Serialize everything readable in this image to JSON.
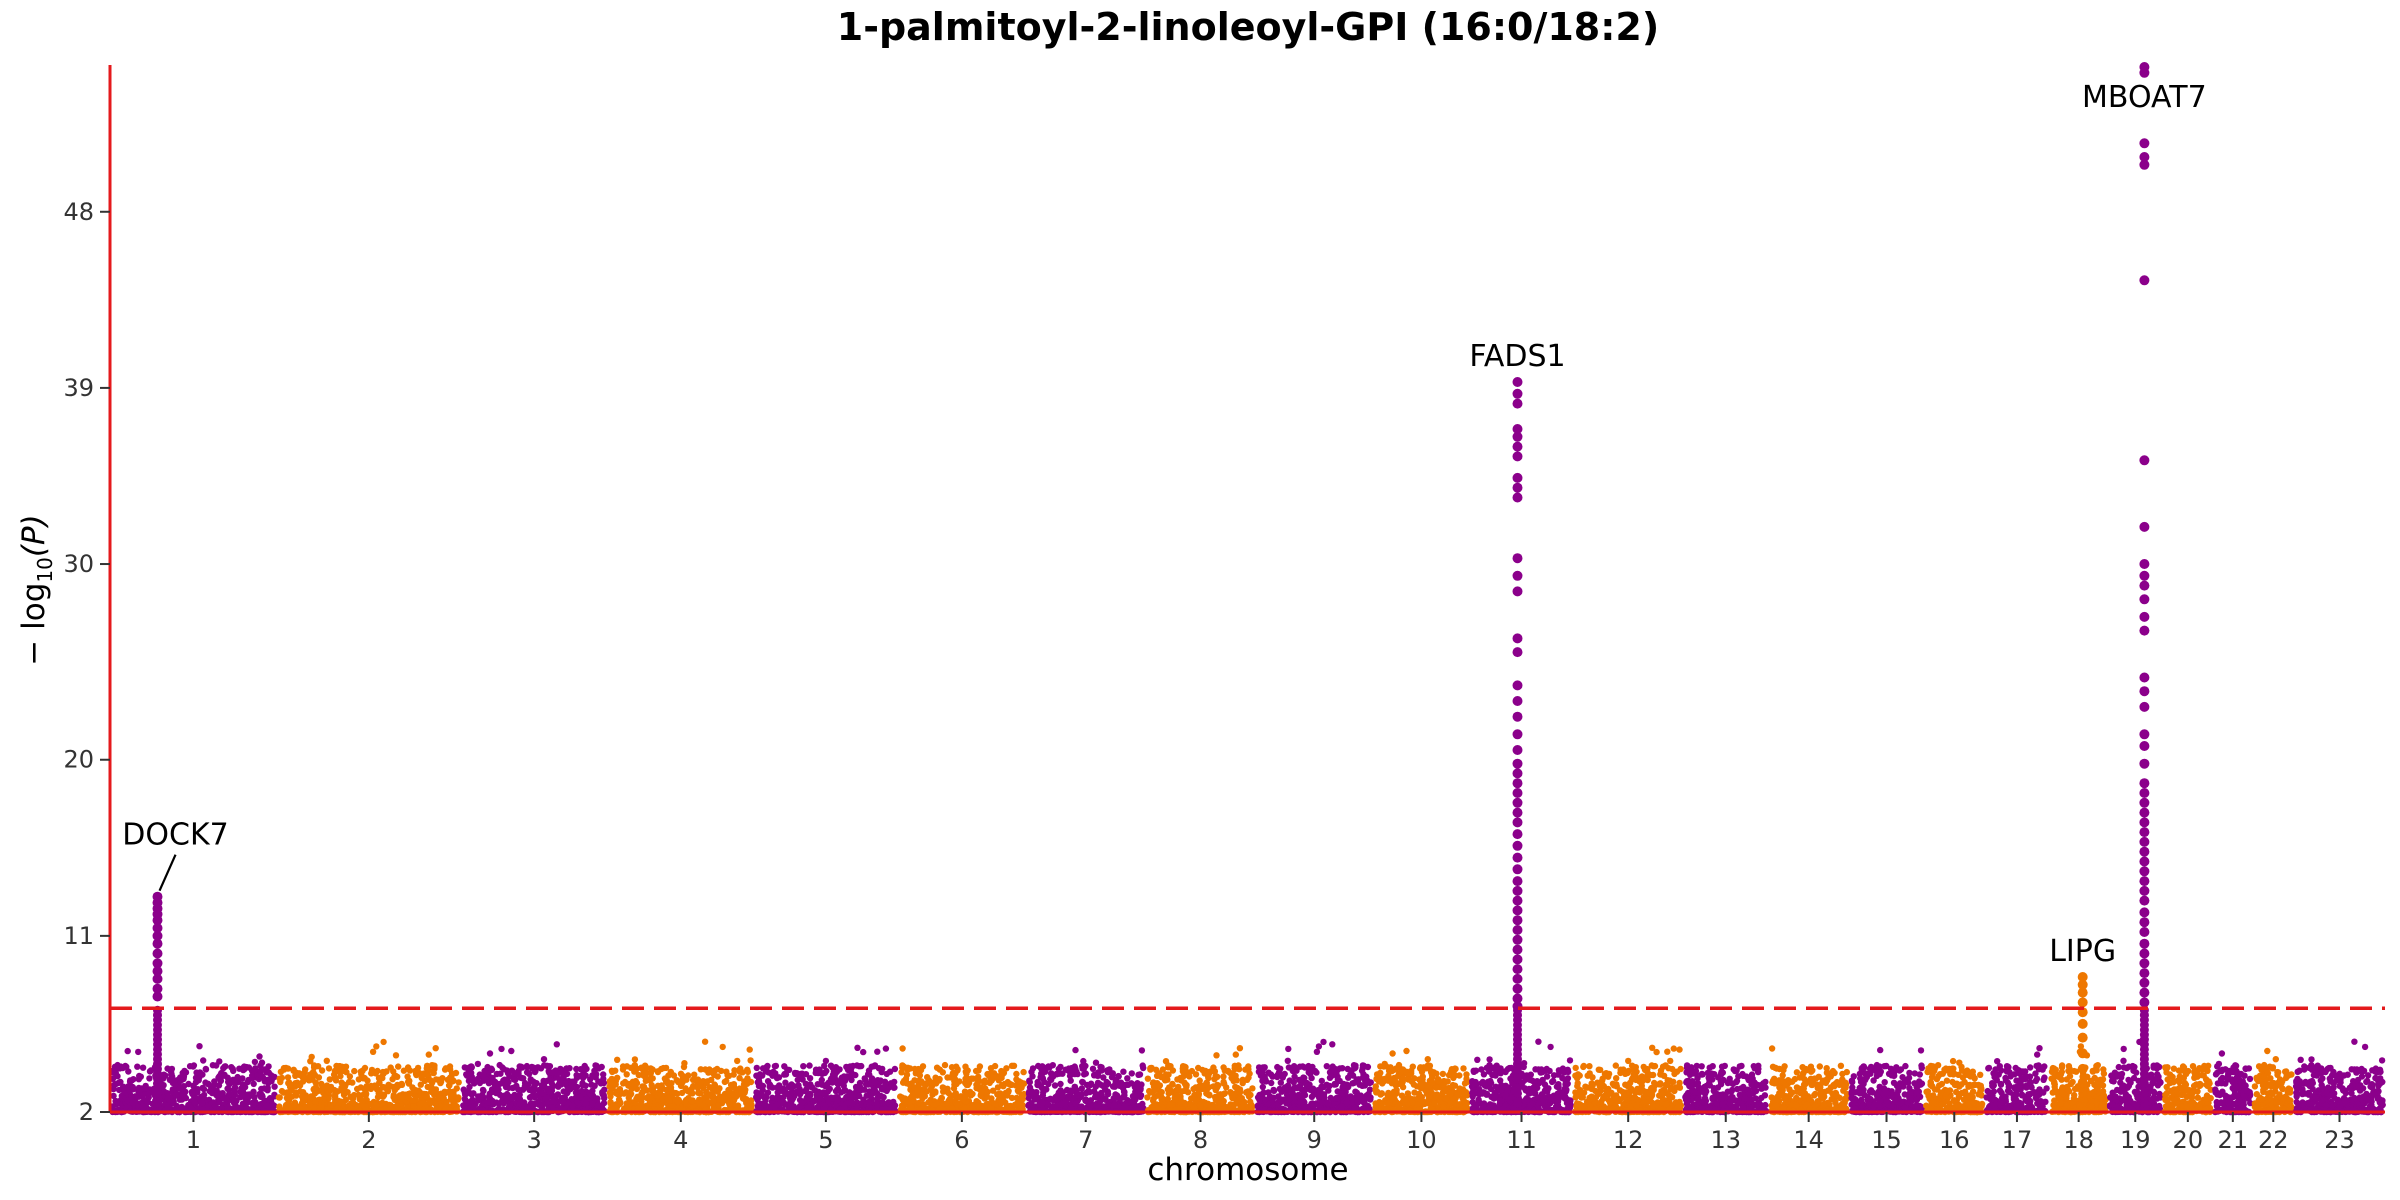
{
  "chart_data": {
    "type": "scatter",
    "subtype": "manhattan",
    "title": "1-palmitoyl-2-linoleoyl-GPI (16:0/18:2)",
    "xlabel": "chromosome",
    "ylabel_main": "− log",
    "ylabel_sub": "10",
    "ylabel_tail": "(P)",
    "ylim": [
      2,
      55.5
    ],
    "yticks": [
      2,
      11,
      20,
      30,
      39,
      48
    ],
    "threshold": 7.3,
    "colors": {
      "odd": "#8B008B",
      "even": "#EE7700",
      "axis": "#E41A1C",
      "threshold": "#E41A1C"
    },
    "chromosomes": [
      {
        "label": "1",
        "start": 0,
        "end": 165
      },
      {
        "label": "2",
        "start": 165,
        "end": 347
      },
      {
        "label": "3",
        "start": 347,
        "end": 492
      },
      {
        "label": "4",
        "start": 492,
        "end": 637
      },
      {
        "label": "5",
        "start": 637,
        "end": 779
      },
      {
        "label": "6",
        "start": 779,
        "end": 906
      },
      {
        "label": "7",
        "start": 906,
        "end": 1024
      },
      {
        "label": "8",
        "start": 1024,
        "end": 1133
      },
      {
        "label": "9",
        "start": 1133,
        "end": 1249
      },
      {
        "label": "10",
        "start": 1249,
        "end": 1345
      },
      {
        "label": "11",
        "start": 1345,
        "end": 1447
      },
      {
        "label": "12",
        "start": 1447,
        "end": 1556
      },
      {
        "label": "13",
        "start": 1556,
        "end": 1640
      },
      {
        "label": "14",
        "start": 1640,
        "end": 1720
      },
      {
        "label": "15",
        "start": 1720,
        "end": 1794
      },
      {
        "label": "16",
        "start": 1794,
        "end": 1854
      },
      {
        "label": "17",
        "start": 1854,
        "end": 1918
      },
      {
        "label": "18",
        "start": 1918,
        "end": 1976
      },
      {
        "label": "19",
        "start": 1976,
        "end": 2030
      },
      {
        "label": "20",
        "start": 2030,
        "end": 2080
      },
      {
        "label": "21",
        "start": 2080,
        "end": 2119
      },
      {
        "label": "22",
        "start": 2119,
        "end": 2160
      },
      {
        "label": "23",
        "start": 2160,
        "end": 2250
      }
    ],
    "peaks": [
      {
        "gene": "DOCK7",
        "x": 47,
        "ymax": 13.0,
        "ys": [
          7.9,
          8.3,
          8.8,
          9.2,
          9.6,
          10.1,
          10.6,
          11.0,
          11.4,
          11.8,
          12.1,
          12.4,
          12.7,
          13.0
        ]
      },
      {
        "gene": "FADS1",
        "x": 1392,
        "ymax": 39.3,
        "ys": [
          7.4,
          7.8,
          8.3,
          8.8,
          9.3,
          9.8,
          10.3,
          10.8,
          11.3,
          11.8,
          12.3,
          12.8,
          13.3,
          13.8,
          14.4,
          15.0,
          15.6,
          16.2,
          16.8,
          17.3,
          17.8,
          18.3,
          18.8,
          19.3,
          19.8,
          20.5,
          21.3,
          22.2,
          23.0,
          23.8,
          25.5,
          26.2,
          28.6,
          29.4,
          30.3,
          33.4,
          33.9,
          34.4,
          35.5,
          36.0,
          36.5,
          36.9,
          38.2,
          38.7,
          39.3
        ]
      },
      {
        "gene": "LIPG",
        "x": 1951,
        "ymax": 8.9,
        "ys": [
          3.5,
          4.2,
          5.0,
          5.8,
          6.5,
          7.1,
          7.6,
          8.1,
          8.5,
          8.9
        ]
      },
      {
        "gene": "MBOAT7",
        "x": 2012,
        "ymax": 55.4,
        "ys": [
          7.6,
          8.1,
          8.6,
          9.1,
          9.6,
          10.1,
          10.6,
          11.2,
          11.7,
          12.2,
          12.8,
          13.3,
          13.8,
          14.3,
          14.8,
          15.3,
          15.8,
          16.3,
          16.8,
          17.3,
          17.8,
          18.3,
          18.8,
          19.8,
          20.7,
          21.3,
          22.7,
          23.5,
          24.2,
          26.6,
          27.3,
          28.2,
          28.9,
          29.4,
          30.0,
          31.9,
          35.3,
          44.5,
          50.4,
          50.8,
          51.5,
          55.1,
          55.4
        ]
      }
    ]
  }
}
